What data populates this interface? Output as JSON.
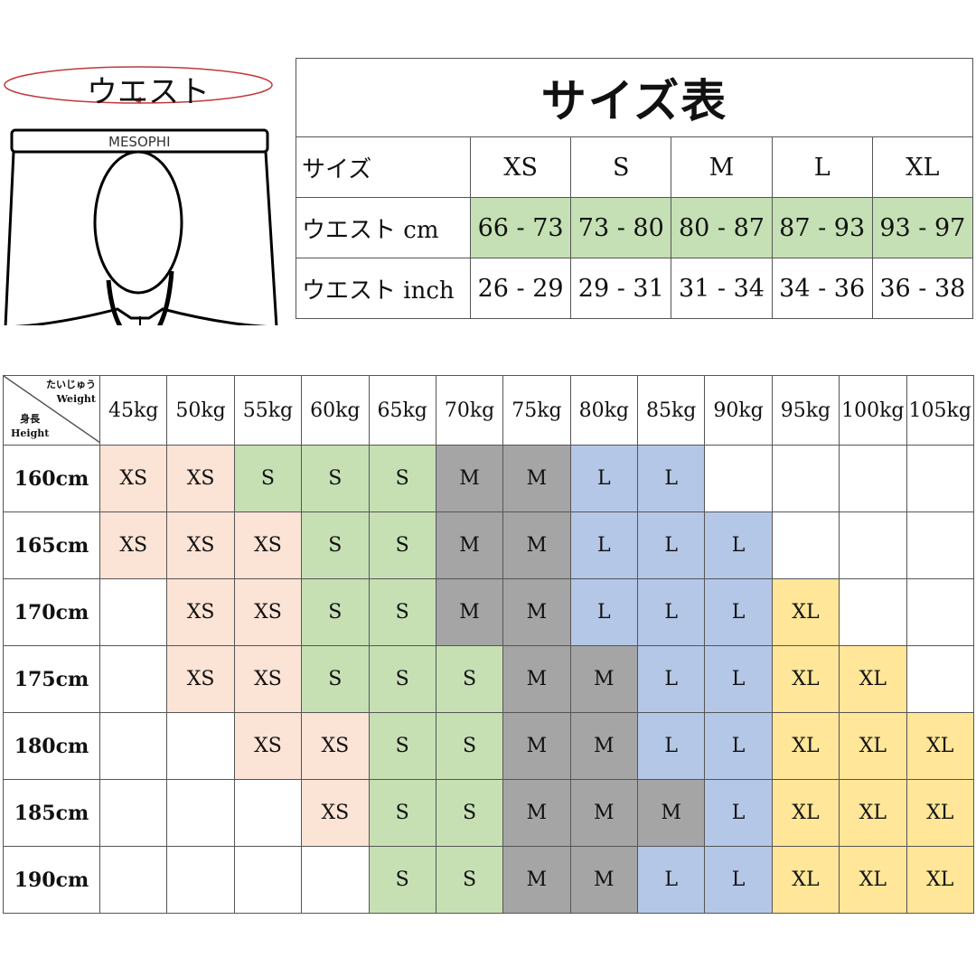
{
  "diagram": {
    "waist_label": "ウエスト",
    "brand": "MESOPHI"
  },
  "size_table": {
    "title": "サイズ表",
    "header_label": "サイズ",
    "sizes": [
      "XS",
      "S",
      "M",
      "L",
      "XL"
    ],
    "rows": [
      {
        "label": "ウエスト cm",
        "values": [
          "66 - 73",
          "73 - 80",
          "80 - 87",
          "87 - 93",
          "93 - 97"
        ]
      },
      {
        "label": "ウエスト inch",
        "values": [
          "26 - 29",
          "29 - 31",
          "31 - 34",
          "34 - 36",
          "36 - 38"
        ]
      }
    ]
  },
  "fit_chart": {
    "corner": {
      "weight_jp": "たいじゅう",
      "weight": "Weight",
      "height_jp": "身長",
      "height": "Height"
    },
    "weights": [
      "45kg",
      "50kg",
      "55kg",
      "60kg",
      "65kg",
      "70kg",
      "75kg",
      "80kg",
      "85kg",
      "90kg",
      "95kg",
      "100kg",
      "105kg"
    ],
    "rows": [
      {
        "height": "160cm",
        "sizes": [
          "XS",
          "XS",
          "S",
          "S",
          "S",
          "M",
          "M",
          "L",
          "L",
          "",
          "",
          "",
          ""
        ]
      },
      {
        "height": "165cm",
        "sizes": [
          "XS",
          "XS",
          "XS",
          "S",
          "S",
          "M",
          "M",
          "L",
          "L",
          "L",
          "",
          "",
          ""
        ]
      },
      {
        "height": "170cm",
        "sizes": [
          "",
          "XS",
          "XS",
          "S",
          "S",
          "M",
          "M",
          "L",
          "L",
          "L",
          "XL",
          "",
          ""
        ]
      },
      {
        "height": "175cm",
        "sizes": [
          "",
          "XS",
          "XS",
          "S",
          "S",
          "S",
          "M",
          "M",
          "L",
          "L",
          "XL",
          "XL",
          ""
        ]
      },
      {
        "height": "180cm",
        "sizes": [
          "",
          "",
          "XS",
          "XS",
          "S",
          "S",
          "M",
          "M",
          "L",
          "L",
          "XL",
          "XL",
          "XL"
        ]
      },
      {
        "height": "185cm",
        "sizes": [
          "",
          "",
          "",
          "XS",
          "S",
          "S",
          "M",
          "M",
          "M",
          "L",
          "XL",
          "XL",
          "XL"
        ]
      },
      {
        "height": "190cm",
        "sizes": [
          "",
          "",
          "",
          "",
          "S",
          "S",
          "M",
          "M",
          "L",
          "L",
          "XL",
          "XL",
          "XL"
        ]
      }
    ],
    "colors": {
      "XS": "#fbe3d6",
      "S": "#c6e0b4",
      "M": "#a5a5a5",
      "L": "#b4c7e7",
      "XL": "#ffe699"
    }
  }
}
